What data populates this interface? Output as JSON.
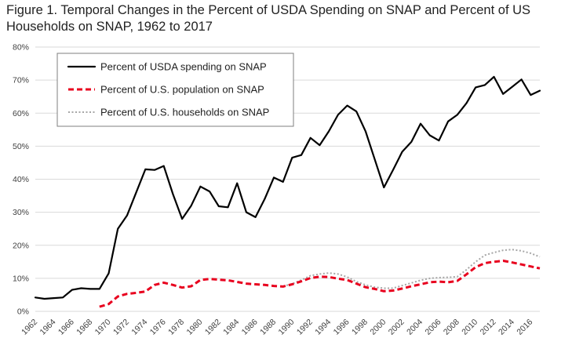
{
  "title_line1": "Figure 1.  Temporal Changes in the Percent of USDA Spending on SNAP and Percent of US",
  "title_line2": "Households on SNAP, 1962 to 2017",
  "chart_data": {
    "type": "line",
    "title": "Figure 1.  Temporal Changes in the Percent of USDA Spending on SNAP and Percent of US Households on SNAP, 1962 to 2017",
    "xlabel": "",
    "ylabel": "",
    "xlim": [
      1962,
      2017
    ],
    "ylim": [
      0,
      80
    ],
    "yticks": [
      0,
      10,
      20,
      30,
      40,
      50,
      60,
      70,
      80
    ],
    "yticklabels": [
      "0%",
      "10%",
      "20%",
      "30%",
      "40%",
      "50%",
      "60%",
      "70%",
      "80%"
    ],
    "xticks": [
      1962,
      1964,
      1966,
      1968,
      1970,
      1972,
      1974,
      1976,
      1978,
      1980,
      1982,
      1984,
      1986,
      1988,
      1990,
      1992,
      1994,
      1996,
      1998,
      2000,
      2002,
      2004,
      2006,
      2008,
      2010,
      2012,
      2014,
      2016
    ],
    "xticklabels": [
      "1962",
      "1964",
      "1966",
      "1968",
      "1970",
      "1972",
      "1974",
      "1976",
      "1978",
      "1980",
      "1982",
      "1984",
      "1986",
      "1988",
      "1990",
      "1992",
      "1994",
      "1996",
      "1998",
      "2000",
      "2002",
      "2004",
      "2006",
      "2008",
      "2010",
      "2012",
      "2014",
      "2016"
    ],
    "grid": true,
    "legend": {
      "placement": "top-left"
    },
    "series": [
      {
        "name": "Percent of USDA spending on SNAP",
        "color": "#000000",
        "style": "solid",
        "x": [
          1962,
          1963,
          1964,
          1965,
          1966,
          1967,
          1968,
          1969,
          1970,
          1971,
          1972,
          1973,
          1974,
          1975,
          1976,
          1977,
          1978,
          1979,
          1980,
          1981,
          1982,
          1983,
          1984,
          1985,
          1986,
          1987,
          1988,
          1989,
          1990,
          1991,
          1992,
          1993,
          1994,
          1995,
          1996,
          1997,
          1998,
          1999,
          2000,
          2001,
          2002,
          2003,
          2004,
          2005,
          2006,
          2007,
          2008,
          2009,
          2010,
          2011,
          2012,
          2013,
          2014,
          2015,
          2016,
          2017
        ],
        "values": [
          4.2,
          3.8,
          4.0,
          4.2,
          6.5,
          7.0,
          6.8,
          6.8,
          11.5,
          25.0,
          29.0,
          36.0,
          43.0,
          42.8,
          44.0,
          35.5,
          28.0,
          32.0,
          37.8,
          36.3,
          31.8,
          31.5,
          38.8,
          30.0,
          28.5,
          34.0,
          40.5,
          39.2,
          46.5,
          47.3,
          52.5,
          50.3,
          54.5,
          59.5,
          62.3,
          60.5,
          54.5,
          46.0,
          37.5,
          42.8,
          48.3,
          51.3,
          56.8,
          53.3,
          51.7,
          57.5,
          59.5,
          63.0,
          67.8,
          68.5,
          71.0,
          65.8,
          68.0,
          70.2,
          65.5,
          66.8
        ]
      },
      {
        "name": "Percent of U.S. population on SNAP",
        "color": "#e8001e",
        "style": "dashed",
        "x": [
          1969,
          1970,
          1971,
          1972,
          1973,
          1974,
          1975,
          1976,
          1977,
          1978,
          1979,
          1980,
          1981,
          1982,
          1983,
          1984,
          1985,
          1986,
          1987,
          1988,
          1989,
          1990,
          1991,
          1992,
          1993,
          1994,
          1995,
          1996,
          1997,
          1998,
          1999,
          2000,
          2001,
          2002,
          2003,
          2004,
          2005,
          2006,
          2007,
          2008,
          2009,
          2010,
          2011,
          2012,
          2013,
          2014,
          2015,
          2016,
          2017
        ],
        "values": [
          1.4,
          2.2,
          4.5,
          5.3,
          5.6,
          6.0,
          8.0,
          8.7,
          8.0,
          7.2,
          7.6,
          9.5,
          9.8,
          9.6,
          9.4,
          8.9,
          8.4,
          8.2,
          8.0,
          7.7,
          7.5,
          8.2,
          9.1,
          10.1,
          10.5,
          10.4,
          9.9,
          9.5,
          8.4,
          7.3,
          6.8,
          6.1,
          6.3,
          6.9,
          7.6,
          8.2,
          8.8,
          9.0,
          8.8,
          9.2,
          11.2,
          13.4,
          14.6,
          15.0,
          15.3,
          14.8,
          14.2,
          13.6,
          13.0
        ]
      },
      {
        "name": "Percent of U.S. households on SNAP",
        "color": "#a6a6a6",
        "style": "dotted",
        "x": [
          1989,
          1990,
          1991,
          1992,
          1993,
          1994,
          1995,
          1996,
          1997,
          1998,
          1999,
          2000,
          2001,
          2002,
          2003,
          2004,
          2005,
          2006,
          2007,
          2008,
          2009,
          2010,
          2011,
          2012,
          2013,
          2014,
          2015,
          2016,
          2017
        ],
        "values": [
          7.6,
          8.3,
          9.5,
          10.8,
          11.3,
          11.6,
          11.3,
          10.4,
          9.0,
          8.0,
          7.3,
          7.0,
          7.0,
          7.8,
          8.6,
          9.4,
          10.0,
          10.2,
          10.3,
          10.5,
          12.6,
          15.0,
          17.0,
          17.8,
          18.5,
          18.7,
          18.3,
          17.6,
          16.5
        ]
      }
    ]
  }
}
